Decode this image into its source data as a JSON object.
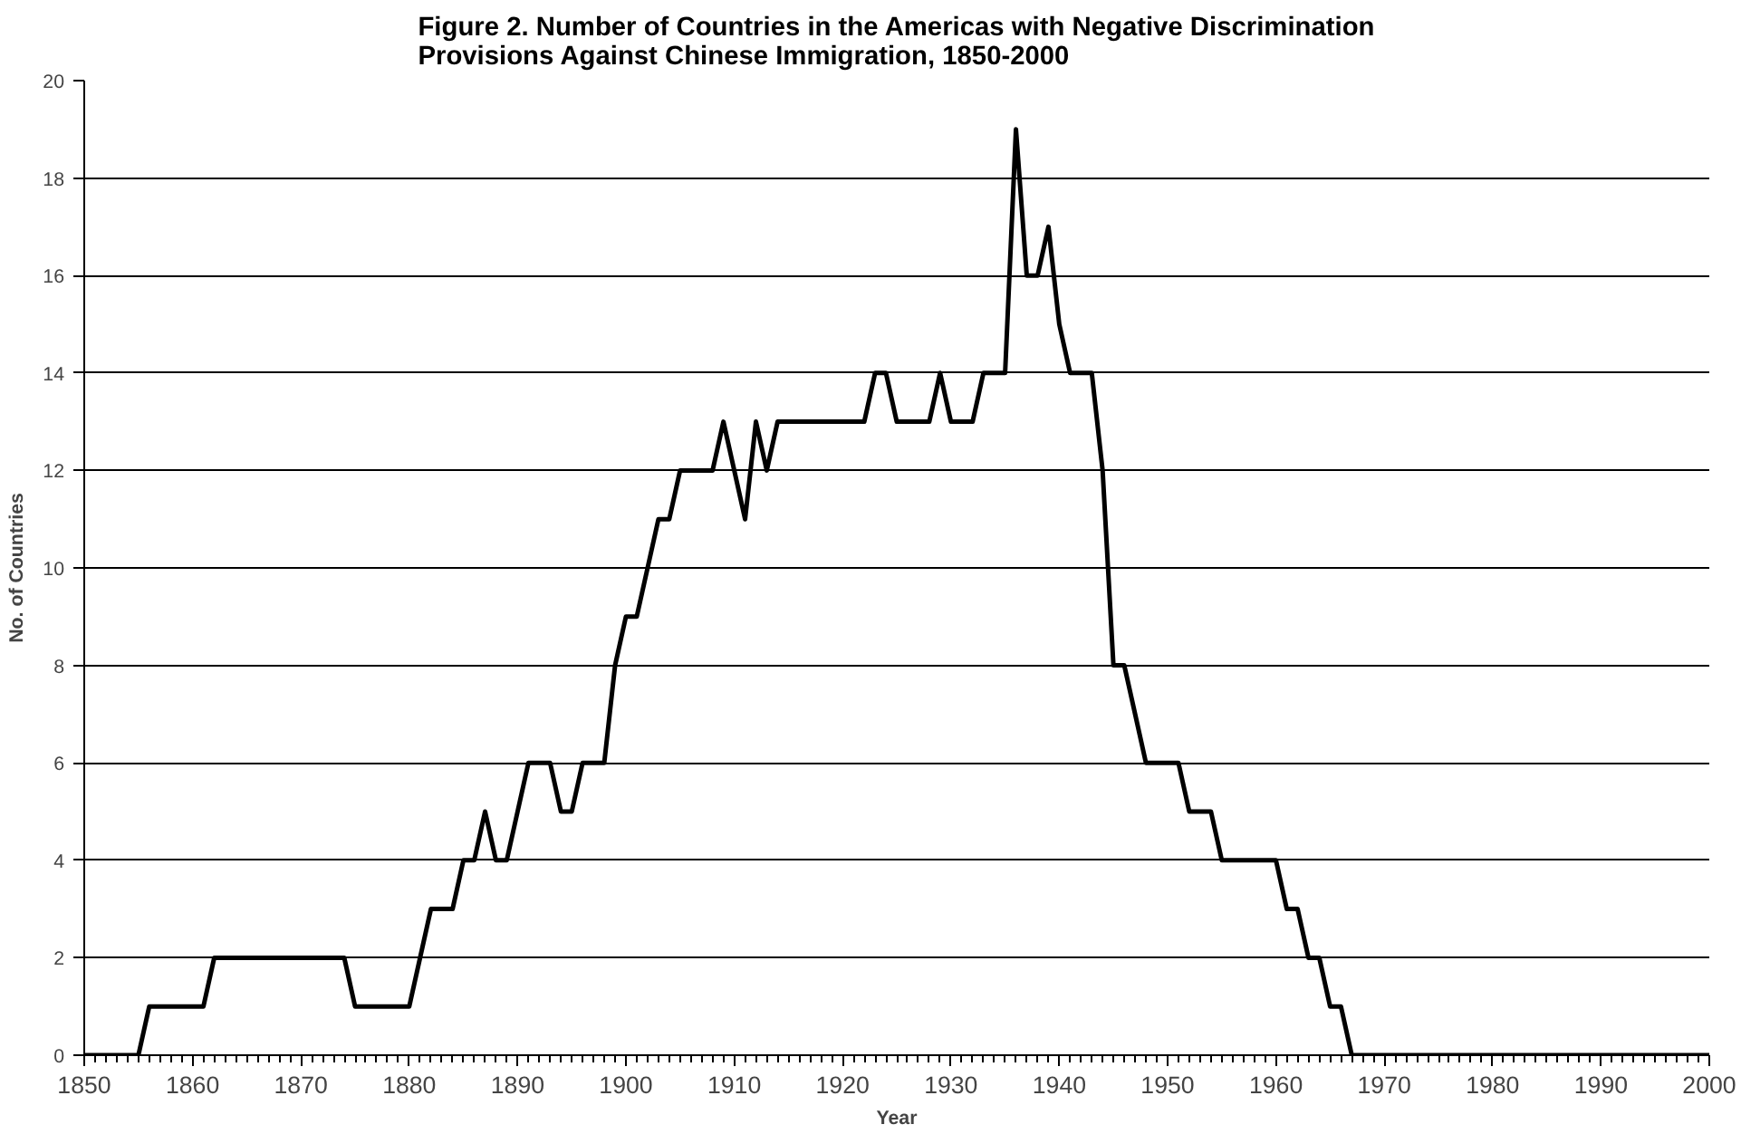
{
  "chart_data": {
    "type": "line",
    "title": "Figure 2. Number of Countries in the Americas with Negative Discrimination\nProvisions Against Chinese Immigration, 1850-2000",
    "xlabel": "Year",
    "ylabel": "No. of Countries",
    "x": [
      1850,
      1851,
      1852,
      1853,
      1854,
      1855,
      1856,
      1857,
      1858,
      1859,
      1860,
      1861,
      1862,
      1863,
      1864,
      1865,
      1866,
      1867,
      1868,
      1869,
      1870,
      1871,
      1872,
      1873,
      1874,
      1875,
      1876,
      1877,
      1878,
      1879,
      1880,
      1881,
      1882,
      1883,
      1884,
      1885,
      1886,
      1887,
      1888,
      1889,
      1890,
      1891,
      1892,
      1893,
      1894,
      1895,
      1896,
      1897,
      1898,
      1899,
      1900,
      1901,
      1902,
      1903,
      1904,
      1905,
      1906,
      1907,
      1908,
      1909,
      1910,
      1911,
      1912,
      1913,
      1914,
      1915,
      1916,
      1917,
      1918,
      1919,
      1920,
      1921,
      1922,
      1923,
      1924,
      1925,
      1926,
      1927,
      1928,
      1929,
      1930,
      1931,
      1932,
      1933,
      1934,
      1935,
      1936,
      1937,
      1938,
      1939,
      1940,
      1941,
      1942,
      1943,
      1944,
      1945,
      1946,
      1947,
      1948,
      1949,
      1950,
      1951,
      1952,
      1953,
      1954,
      1955,
      1956,
      1957,
      1958,
      1959,
      1960,
      1961,
      1962,
      1963,
      1964,
      1965,
      1966,
      1967,
      1968,
      1969,
      1970,
      1971,
      1972,
      1973,
      1974,
      1975,
      1976,
      1977,
      1978,
      1979,
      1980,
      1981,
      1982,
      1983,
      1984,
      1985,
      1986,
      1987,
      1988,
      1989,
      1990,
      1991,
      1992,
      1993,
      1994,
      1995,
      1996,
      1997,
      1998,
      1999,
      2000
    ],
    "series": [
      {
        "color": "#000000",
        "values": [
          0,
          0,
          0,
          0,
          0,
          0,
          1,
          1,
          1,
          1,
          1,
          1,
          2,
          2,
          2,
          2,
          2,
          2,
          2,
          2,
          2,
          2,
          2,
          2,
          2,
          1,
          1,
          1,
          1,
          1,
          1,
          2,
          3,
          3,
          3,
          4,
          4,
          5,
          4,
          4,
          5,
          6,
          6,
          6,
          5,
          5,
          6,
          6,
          6,
          8,
          9,
          9,
          10,
          11,
          11,
          12,
          12,
          12,
          12,
          13,
          12,
          11,
          13,
          12,
          13,
          13,
          13,
          13,
          13,
          13,
          13,
          13,
          13,
          14,
          14,
          13,
          13,
          13,
          13,
          14,
          13,
          13,
          13,
          14,
          14,
          14,
          19,
          16,
          16,
          17,
          15,
          14,
          14,
          14,
          12,
          8,
          8,
          7,
          6,
          6,
          6,
          6,
          5,
          5,
          5,
          4,
          4,
          4,
          4,
          4,
          4,
          3,
          3,
          2,
          2,
          1,
          1,
          0,
          0,
          0,
          0,
          0,
          0,
          0,
          0,
          0,
          0,
          0,
          0,
          0,
          0,
          0,
          0,
          0,
          0,
          0,
          0,
          0,
          0,
          0,
          0,
          0,
          0,
          0,
          0,
          0,
          0,
          0,
          0,
          0,
          0
        ]
      }
    ],
    "xlim": [
      1850,
      2000
    ],
    "xticks": [
      1850,
      1860,
      1870,
      1880,
      1890,
      1900,
      1910,
      1920,
      1930,
      1940,
      1950,
      1960,
      1970,
      1980,
      1990,
      2000
    ],
    "ylim": [
      0,
      20
    ],
    "yticks": [
      0,
      2,
      4,
      6,
      8,
      10,
      12,
      14,
      16,
      18,
      20
    ],
    "grid": "y",
    "marker": "none",
    "line_style": "solid"
  }
}
